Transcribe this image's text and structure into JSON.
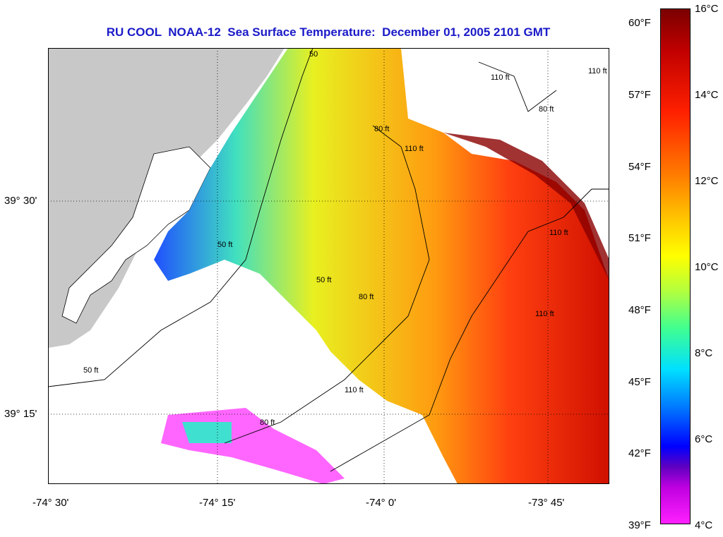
{
  "title": "RU COOL  NOAA-12  Sea Surface Temperature:  December 01, 2005 2101 GMT",
  "axes": {
    "x_ticks": [
      "-74° 30'",
      "-74° 15'",
      "-74° 0'",
      "-73° 45'"
    ],
    "y_ticks": [
      "39° 30'",
      "39° 15'"
    ]
  },
  "contours": [
    "50",
    "80 ft",
    "110 ft",
    "80 ft",
    "110 ft",
    "110 ft",
    "50 ft",
    "50 ft",
    "80 ft",
    "110 ft",
    "110 ft",
    "50 ft",
    "80 ft",
    "110 ft"
  ],
  "colorbar": {
    "fahrenheit": [
      "60°F",
      "57°F",
      "54°F",
      "51°F",
      "48°F",
      "45°F",
      "42°F",
      "39°F"
    ],
    "celsius": [
      "16°C",
      "14°C",
      "12°C",
      "10°C",
      "8°C",
      "6°C",
      "4°C"
    ]
  },
  "colors": {
    "land": "#c8c8c8",
    "title": "#1a1ac8"
  }
}
